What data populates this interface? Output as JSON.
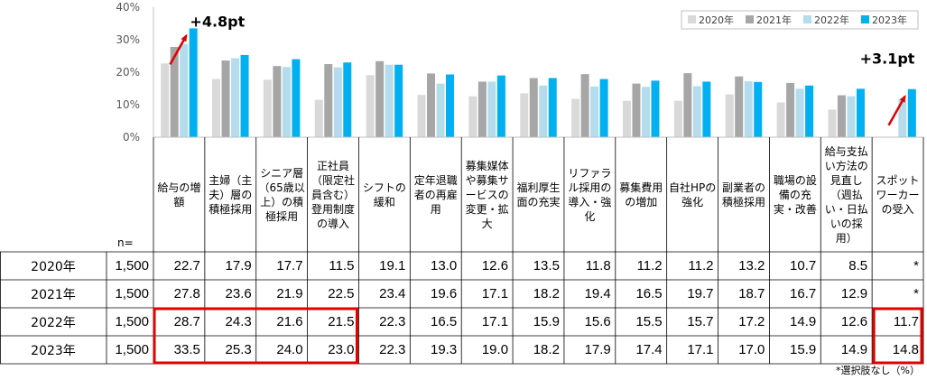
{
  "chart_data": {
    "type": "bar",
    "ylim": [
      0,
      40
    ],
    "yticks": [
      "0%",
      "10%",
      "20%",
      "30%",
      "40%"
    ],
    "grid": false,
    "legend_position": "top-right",
    "n_label": "n=",
    "categories": [
      "給与の増額",
      "主婦（主夫）層の積極採用",
      "シニア層（65歳以上）の積極採用",
      "正社員（限定社員含む）登用制度の導入",
      "シフトの緩和",
      "定年退職者の再雇用",
      "募集媒体や募集サービスの変更・拡大",
      "福利厚生面の充実",
      "リファラル採用の導入・強化",
      "募集費用の増加",
      "自社HPの強化",
      "副業者の積極採用",
      "職場の設備の充実・改善",
      "給与支払い方法の見直し（週払い・日払いの採用）",
      "スポットワーカーの受入"
    ],
    "series": [
      {
        "name": "2020年",
        "n": "1,500",
        "color": "#d9d9d9",
        "values": [
          22.7,
          17.9,
          17.7,
          11.5,
          19.1,
          13.0,
          12.6,
          13.5,
          11.8,
          11.2,
          11.2,
          13.2,
          10.7,
          8.5,
          null
        ],
        "labels": [
          "22.7",
          "17.9",
          "17.7",
          "11.5",
          "19.1",
          "13.0",
          "12.6",
          "13.5",
          "11.8",
          "11.2",
          "11.2",
          "13.2",
          "10.7",
          "8.5",
          "*"
        ]
      },
      {
        "name": "2021年",
        "n": "1,500",
        "color": "#a6a6a6",
        "values": [
          27.8,
          23.6,
          21.9,
          22.5,
          23.4,
          19.6,
          17.1,
          18.2,
          19.4,
          16.5,
          19.7,
          18.7,
          16.7,
          12.9,
          null
        ],
        "labels": [
          "27.8",
          "23.6",
          "21.9",
          "22.5",
          "23.4",
          "19.6",
          "17.1",
          "18.2",
          "19.4",
          "16.5",
          "19.7",
          "18.7",
          "16.7",
          "12.9",
          "*"
        ]
      },
      {
        "name": "2022年",
        "n": "1,500",
        "color": "#b4dcec",
        "values": [
          28.7,
          24.3,
          21.6,
          21.5,
          22.3,
          16.5,
          17.1,
          15.9,
          15.6,
          15.5,
          15.7,
          17.2,
          14.9,
          12.6,
          11.7
        ],
        "labels": [
          "28.7",
          "24.3",
          "21.6",
          "21.5",
          "22.3",
          "16.5",
          "17.1",
          "15.9",
          "15.6",
          "15.5",
          "15.7",
          "17.2",
          "14.9",
          "12.6",
          "11.7"
        ]
      },
      {
        "name": "2023年",
        "n": "1,500",
        "color": "#00b0f0",
        "values": [
          33.5,
          25.3,
          24.0,
          23.0,
          22.3,
          19.3,
          19.0,
          18.2,
          17.9,
          17.4,
          17.1,
          17.0,
          15.9,
          14.9,
          14.8
        ],
        "labels": [
          "33.5",
          "25.3",
          "24.0",
          "23.0",
          "22.3",
          "19.3",
          "19.0",
          "18.2",
          "17.9",
          "17.4",
          "17.1",
          "17.0",
          "15.9",
          "14.9",
          "14.8"
        ]
      }
    ],
    "annotations": [
      {
        "text": "+4.8pt",
        "category_index": 0
      },
      {
        "text": "+3.1pt",
        "category_index": 14
      }
    ],
    "footnote": "*選択肢なし（%）"
  }
}
